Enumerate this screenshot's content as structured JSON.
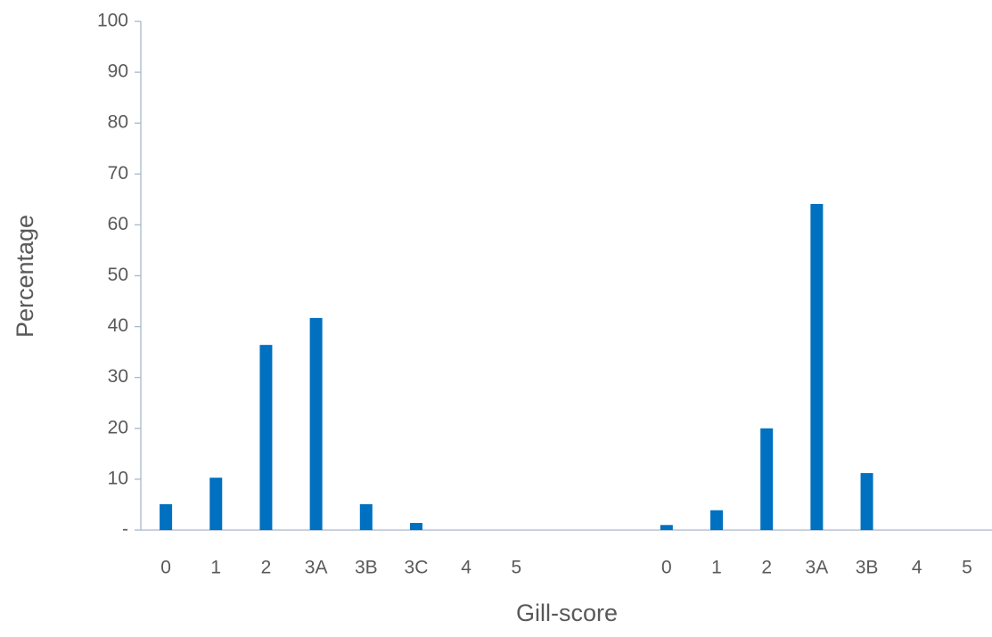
{
  "chart_data": {
    "type": "bar",
    "x_label": "Gill-score",
    "y_label": "Percentage",
    "categories": [
      "0",
      "1",
      "2",
      "3A",
      "3B",
      "3C",
      "4",
      "5",
      null,
      null,
      "0",
      "1",
      "2",
      "3A",
      "3B",
      "4",
      "5"
    ],
    "values": [
      5.1,
      10.3,
      36.4,
      41.7,
      5.1,
      1.4,
      0,
      0,
      null,
      null,
      1.0,
      3.9,
      20,
      64.1,
      11.2,
      0,
      0
    ],
    "color": "#0070c0",
    "ylim": [
      0,
      100
    ],
    "yticks": [
      {
        "value": 0,
        "label": "-"
      },
      10,
      20,
      30,
      40,
      50,
      60,
      70,
      80,
      90,
      100
    ]
  }
}
